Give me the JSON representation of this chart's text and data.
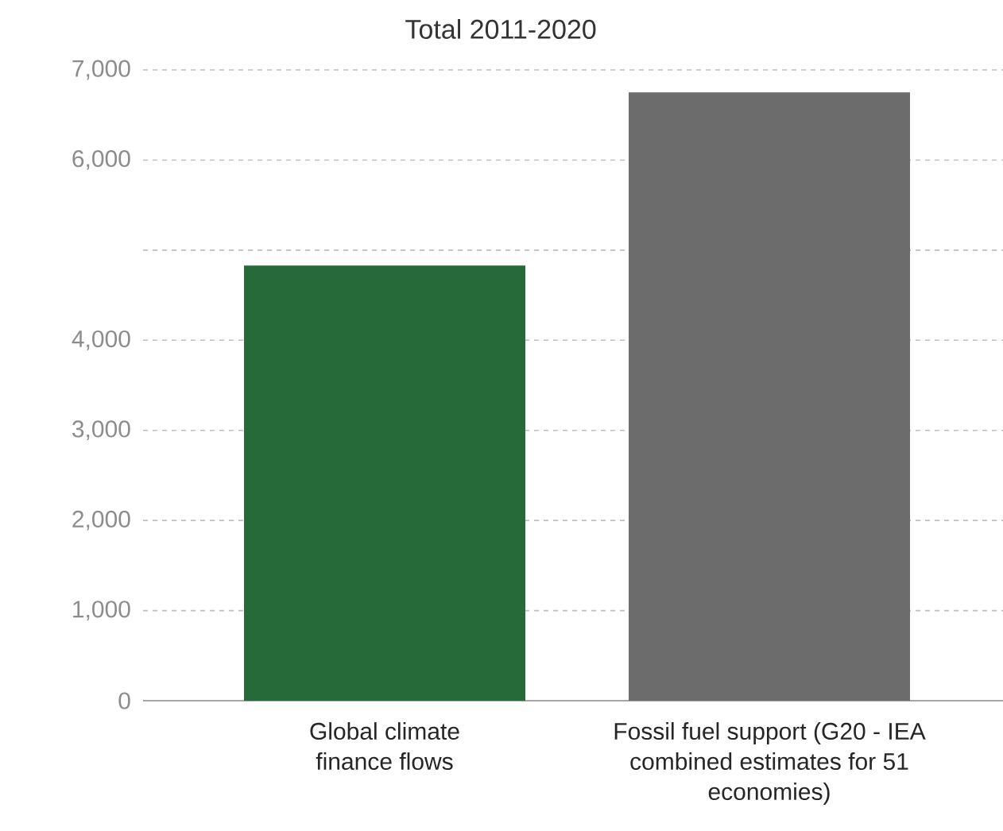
{
  "chart_data": {
    "type": "bar",
    "title": "Total 2011-2020",
    "categories": [
      "Global climate finance flows",
      "Fossil fuel support (G20 - IEA combined estimates for 51 economies)"
    ],
    "values": [
      4830,
      6750
    ],
    "colors": [
      "#256a38",
      "#6b6c6b"
    ],
    "ylim": [
      0,
      7000
    ],
    "yticks": [
      0,
      {
        "value": 1000,
        "label": "1,000"
      },
      {
        "value": 2000,
        "label": "2,000"
      },
      {
        "value": 3000,
        "label": "3,000"
      },
      {
        "value": 4000,
        "label": "4,000"
      },
      {
        "value": 5000,
        "label": null
      },
      {
        "value": 6000,
        "label": "6,000"
      },
      {
        "value": 7000,
        "label": "7,000"
      }
    ],
    "grid": "y"
  }
}
